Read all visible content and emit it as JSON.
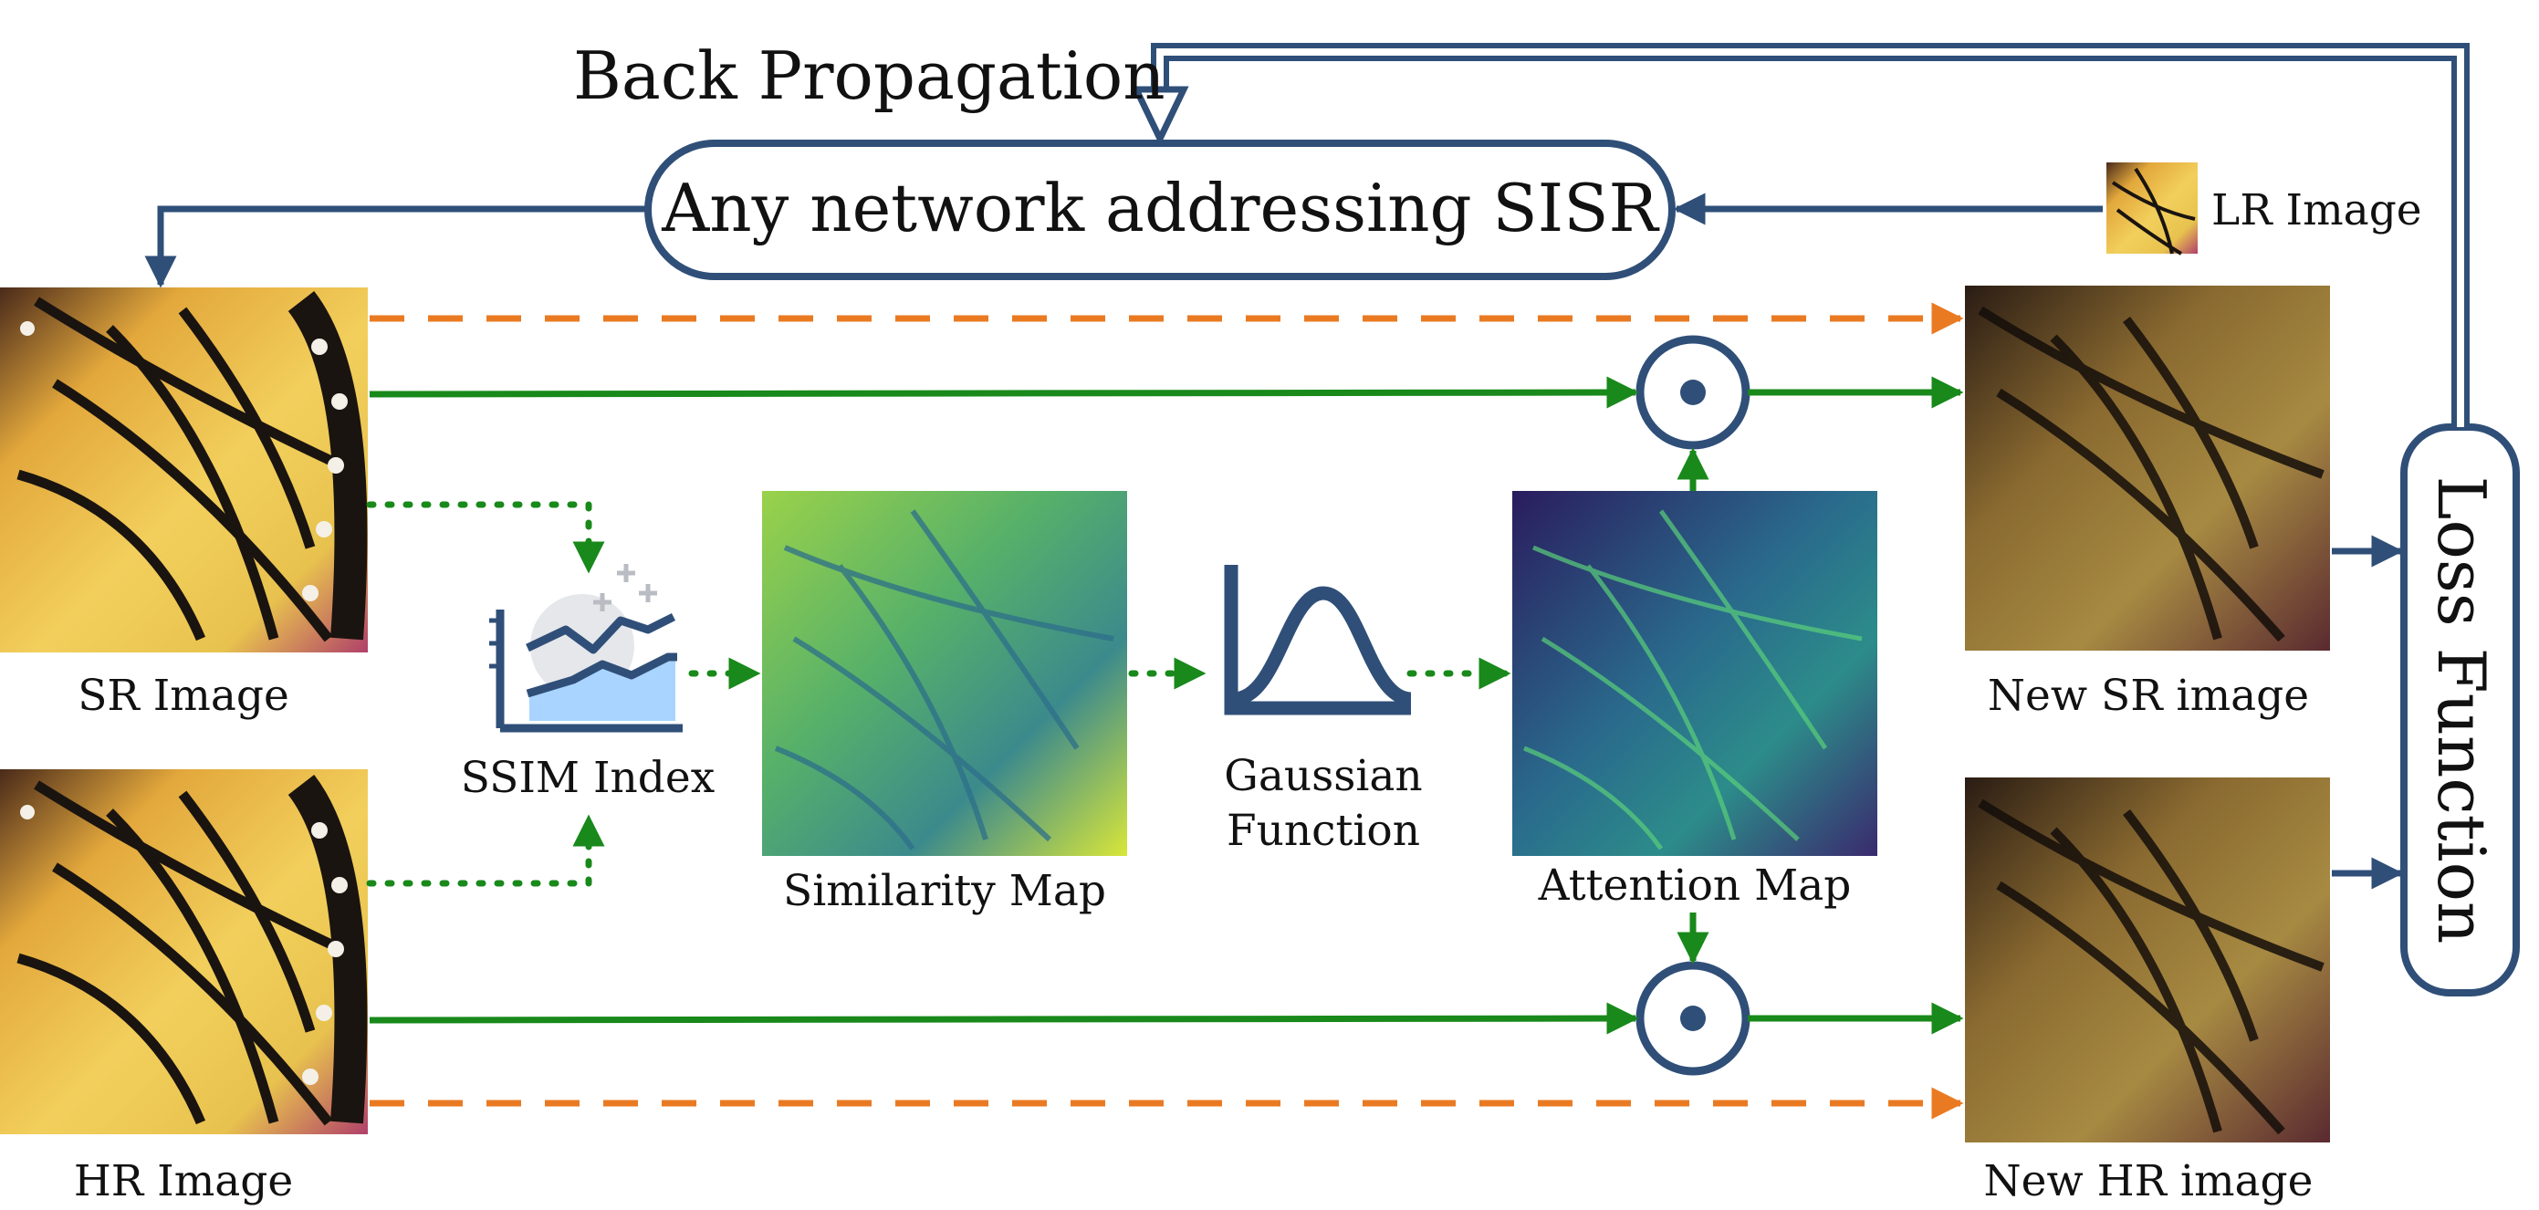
{
  "title": "Back Propagation",
  "network_box": "Any network addressing SISR",
  "lr_image": "LR Image",
  "sr_image": "SR Image",
  "hr_image": "HR Image",
  "ssim_index": "SSIM Index",
  "similarity_map": "Similarity Map",
  "gaussian_line1": "Gaussian",
  "gaussian_line2": "Function",
  "attention_map": "Attention Map",
  "new_sr_image": "New SR image",
  "new_hr_image": "New HR image",
  "loss_function": "Loss Function",
  "colors": {
    "navy": "#2f4f78",
    "green": "#18891a",
    "orange": "#ea7a22",
    "ssim_fill": "#a8d4ff"
  }
}
